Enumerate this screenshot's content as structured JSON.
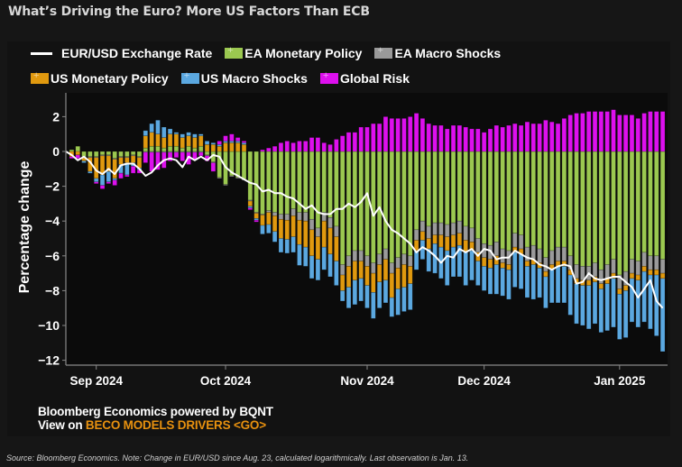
{
  "title": "What’s Driving the Euro? More US Factors Than ECB",
  "legend": {
    "row1": [
      {
        "label": "EUR/USD Exchange Rate",
        "type": "line",
        "color": "#ffffff"
      },
      {
        "label": "EA Monetary Policy",
        "type": "bar",
        "color": "#9bc850"
      },
      {
        "label": "EA Macro Shocks",
        "type": "bar",
        "color": "#9a9a9a"
      }
    ],
    "row2": [
      {
        "label": "US Monetary Policy",
        "type": "bar",
        "color": "#e0990f"
      },
      {
        "label": "US Macro Shocks",
        "type": "bar",
        "color": "#5ba8e0"
      },
      {
        "label": "Global Risk",
        "type": "bar",
        "color": "#dd10ee"
      }
    ]
  },
  "footer": {
    "line1": "Bloomberg Economics powered by BQNT",
    "line2_prefix": "View on ",
    "line2_link": "BECO MODELS DRIVERS <GO>"
  },
  "source": "Source: Bloomberg Economics. Note: Change in EUR/USD since Aug. 23, calculated logarithmically. Last observation is Jan. 13.",
  "chart_data": {
    "type": "bar",
    "stacked": true,
    "title": "What’s Driving the Euro? More US Factors Than ECB",
    "xlabel": "",
    "ylabel": "Percentage change",
    "ylim": [
      -12,
      3
    ],
    "yticks": [
      2,
      0,
      -2,
      -4,
      -6,
      -8,
      -10,
      -12
    ],
    "ytick_labels": [
      "2",
      "0",
      "−2",
      "−4",
      "−6",
      "−8",
      "−10",
      "−12"
    ],
    "xtick_labels": [
      "Sep 2024",
      "Oct 2024",
      "Nov 2024",
      "Dec 2024",
      "Jan 2025"
    ],
    "xtick_positions": [
      4,
      25,
      48,
      67,
      89
    ],
    "n_points": 97,
    "legend_position": "top",
    "grid": false,
    "series": [
      {
        "name": "EA Monetary Policy",
        "color": "#9bc850",
        "values": [
          0.1,
          0.3,
          -0.3,
          -0.3,
          -0.3,
          -0.2,
          -0.2,
          -0.4,
          -0.3,
          -0.3,
          -0.2,
          -0.3,
          0.2,
          0.3,
          0.3,
          0.2,
          0.3,
          0.3,
          0.2,
          0.3,
          0.2,
          0.3,
          -0.2,
          -0.6,
          -1.5,
          -1.9,
          -1.4,
          -1.5,
          -1.6,
          -2.8,
          -3.5,
          -3.6,
          -3.4,
          -3.5,
          -3.6,
          -3.6,
          -3.3,
          -3.5,
          -3.5,
          -3.9,
          -4.4,
          -3.5,
          -3.8,
          -4.3,
          -6.5,
          -6.0,
          -5.7,
          -5.7,
          -6.0,
          -6.4,
          -5.9,
          -5.6,
          -6.4,
          -6.1,
          -5.9,
          -6.0,
          -4.5,
          -4.0,
          -4.3,
          -4.1,
          -4.1,
          -4.2,
          -4.1,
          -4.0,
          -4.3,
          -4.4,
          -5.0,
          -5.3,
          -5.4,
          -5.2,
          -5.6,
          -5.7,
          -4.7,
          -4.8,
          -5.5,
          -5.4,
          -5.6,
          -6.1,
          -5.7,
          -5.5,
          -5.5,
          -6.0,
          -6.5,
          -6.6,
          -6.6,
          -6.4,
          -6.8,
          -6.5,
          -6.2,
          -7.1,
          -6.9,
          -6.2,
          -6.3,
          -5.8,
          -6.0,
          -6.0,
          -6.2
        ]
      },
      {
        "name": "EA Macro Shocks",
        "color": "#9a9a9a",
        "values": [
          0.0,
          0.0,
          -0.05,
          -0.05,
          -0.05,
          -0.05,
          -0.05,
          -0.05,
          -0.05,
          -0.05,
          -0.05,
          -0.05,
          -0.05,
          -0.05,
          -0.05,
          -0.05,
          -0.05,
          -0.05,
          -0.05,
          -0.05,
          -0.05,
          -0.05,
          -0.05,
          -0.05,
          -0.05,
          -0.05,
          -0.05,
          -0.05,
          -0.05,
          -0.05,
          -0.05,
          -0.05,
          -0.1,
          -0.2,
          -0.3,
          -0.35,
          -0.4,
          -0.45,
          -0.5,
          -0.6,
          -0.5,
          -0.5,
          -0.6,
          -0.6,
          -0.6,
          -0.6,
          -0.6,
          -0.6,
          -0.6,
          -0.6,
          -0.6,
          -0.6,
          -0.6,
          -0.6,
          -0.6,
          -0.6,
          -0.6,
          -0.6,
          -0.7,
          -0.7,
          -0.7,
          -0.7,
          -0.7,
          -0.7,
          -0.8,
          -0.8,
          -0.8,
          -0.8,
          -0.8,
          -0.8,
          -0.8,
          -0.8,
          -0.8,
          -0.8,
          -0.8,
          -0.8,
          -0.8,
          -0.8,
          -0.8,
          -0.8,
          -0.8,
          -0.8,
          -0.8,
          -0.8,
          -0.8,
          -0.8,
          -0.8,
          -0.8,
          -0.8,
          -0.8,
          -0.8,
          -0.8,
          -0.8,
          -0.8,
          -0.8,
          -0.8,
          -0.8
        ]
      },
      {
        "name": "US Monetary Policy",
        "color": "#e0990f",
        "values": [
          -0.3,
          -0.2,
          -0.2,
          -0.8,
          -1.2,
          -1.1,
          -0.9,
          -1.1,
          -0.4,
          -0.3,
          -0.4,
          -0.6,
          0.7,
          0.8,
          0.7,
          0.6,
          0.7,
          0.7,
          0.6,
          0.6,
          0.6,
          0.6,
          0.4,
          0.4,
          0.3,
          0.5,
          0.5,
          0.5,
          0.4,
          -0.3,
          -0.3,
          -0.6,
          -0.7,
          -0.9,
          -1.1,
          -1.1,
          -1.2,
          -1.4,
          -1.5,
          -1.5,
          -1.3,
          -1.5,
          -1.5,
          -1.4,
          -0.9,
          -1.2,
          -1.1,
          -1.0,
          -1.1,
          -1.1,
          -1.0,
          -1.2,
          -1.4,
          -1.2,
          -1.3,
          -1.0,
          -0.6,
          -0.5,
          -0.6,
          -0.5,
          -0.7,
          -0.8,
          -0.7,
          -0.7,
          -0.7,
          -0.5,
          -0.5,
          -0.5,
          -0.5,
          -0.5,
          -0.3,
          -0.3,
          -0.3,
          -0.3,
          -0.3,
          -0.3,
          -0.3,
          -0.3,
          -0.3,
          -0.3,
          -0.3,
          -0.3,
          -0.3,
          -0.3,
          -0.3,
          -0.3,
          -0.3,
          -0.3,
          -0.3,
          -0.3,
          -0.3,
          -0.3,
          -0.3,
          -0.3,
          -0.3,
          -0.3,
          -0.3
        ]
      },
      {
        "name": "US Macro Shocks",
        "color": "#5ba8e0",
        "values": [
          0.0,
          0.0,
          -0.1,
          -0.1,
          -0.2,
          -0.6,
          -0.6,
          -0.1,
          -0.5,
          -0.7,
          -0.2,
          -0.1,
          0.3,
          0.5,
          0.8,
          0.6,
          0.3,
          0.1,
          0.2,
          0.2,
          0.2,
          0.1,
          0.2,
          0.1,
          0.1,
          0.1,
          0.1,
          0.1,
          0.1,
          -0.1,
          -0.1,
          -0.5,
          -0.5,
          -0.6,
          -0.8,
          -0.8,
          -0.9,
          -1.2,
          -1.1,
          -1.3,
          -1.2,
          -1.3,
          -1.3,
          -1.4,
          -0.6,
          -1.2,
          -1.4,
          -1.3,
          -1.3,
          -1.5,
          -1.5,
          -1.3,
          -1.1,
          -1.5,
          -1.4,
          -1.5,
          -1.1,
          -1.1,
          -1.3,
          -1.7,
          -1.8,
          -2.0,
          -1.7,
          -1.8,
          -1.9,
          -1.7,
          -1.4,
          -1.4,
          -1.5,
          -1.7,
          -1.6,
          -1.7,
          -2.0,
          -2.0,
          -1.8,
          -2.0,
          -1.7,
          -1.8,
          -1.9,
          -2.1,
          -2.1,
          -2.3,
          -2.3,
          -2.3,
          -2.5,
          -2.4,
          -2.5,
          -2.7,
          -2.8,
          -2.6,
          -2.7,
          -2.5,
          -2.7,
          -2.9,
          -3.1,
          -3.5,
          -4.2
        ]
      },
      {
        "name": "Global Risk",
        "color": "#dd10ee",
        "values": [
          -0.1,
          -0.2,
          0.0,
          0.0,
          -0.1,
          -0.2,
          -0.1,
          -0.3,
          -0.3,
          -0.1,
          -0.4,
          -0.2,
          -0.6,
          -1.1,
          -1.0,
          -0.9,
          -0.5,
          -0.3,
          -0.5,
          -0.7,
          -0.4,
          -0.2,
          -0.3,
          -0.5,
          0.2,
          0.3,
          0.4,
          0.2,
          0.1,
          -0.1,
          -0.1,
          0.1,
          0.2,
          0.3,
          0.5,
          0.6,
          0.5,
          0.6,
          0.6,
          0.8,
          0.8,
          0.5,
          0.4,
          0.7,
          0.9,
          1.1,
          1.1,
          1.4,
          1.4,
          1.6,
          1.6,
          2.0,
          1.9,
          1.9,
          1.9,
          2.0,
          2.2,
          1.9,
          1.6,
          1.5,
          1.5,
          1.3,
          1.5,
          1.5,
          1.4,
          1.3,
          1.3,
          1.1,
          1.3,
          1.5,
          1.4,
          1.5,
          1.6,
          1.5,
          1.7,
          1.6,
          1.6,
          1.8,
          1.7,
          1.6,
          1.9,
          2.1,
          2.2,
          2.2,
          2.3,
          2.3,
          2.3,
          2.3,
          2.4,
          2.1,
          2.1,
          2.1,
          1.9,
          2.2,
          2.3,
          2.3,
          2.3
        ]
      }
    ],
    "line": {
      "name": "EUR/USD Exchange Rate",
      "color": "#ffffff",
      "values": [
        -0.2,
        -0.5,
        -0.3,
        -0.6,
        -1.1,
        -1.3,
        -1.0,
        -1.3,
        -0.8,
        -0.7,
        -0.7,
        -1.0,
        -1.4,
        -1.2,
        -0.8,
        -0.5,
        -0.4,
        -0.5,
        -0.9,
        -0.3,
        -0.5,
        -0.3,
        -0.5,
        -0.2,
        -0.3,
        -0.9,
        -1.2,
        -1.4,
        -1.6,
        -1.8,
        -1.9,
        -2.3,
        -2.2,
        -2.4,
        -2.4,
        -2.6,
        -2.7,
        -3.0,
        -3.3,
        -3.1,
        -3.5,
        -3.6,
        -3.6,
        -3.3,
        -3.3,
        -3.0,
        -3.2,
        -2.9,
        -2.4,
        -3.7,
        -3.2,
        -4.0,
        -4.5,
        -4.7,
        -5.0,
        -5.3,
        -5.8,
        -5.5,
        -5.7,
        -6.0,
        -6.4,
        -6.0,
        -6.1,
        -5.6,
        -5.8,
        -5.6,
        -6.0,
        -5.6,
        -5.7,
        -6.2,
        -6.1,
        -6.1,
        -5.7,
        -5.9,
        -6.1,
        -6.2,
        -6.5,
        -6.6,
        -6.8,
        -6.6,
        -6.5,
        -6.6,
        -7.6,
        -7.5,
        -7.0,
        -7.3,
        -7.4,
        -7.3,
        -7.2,
        -7.2,
        -7.5,
        -7.8,
        -8.4,
        -7.9,
        -7.4,
        -8.6,
        -9.0
      ]
    }
  }
}
